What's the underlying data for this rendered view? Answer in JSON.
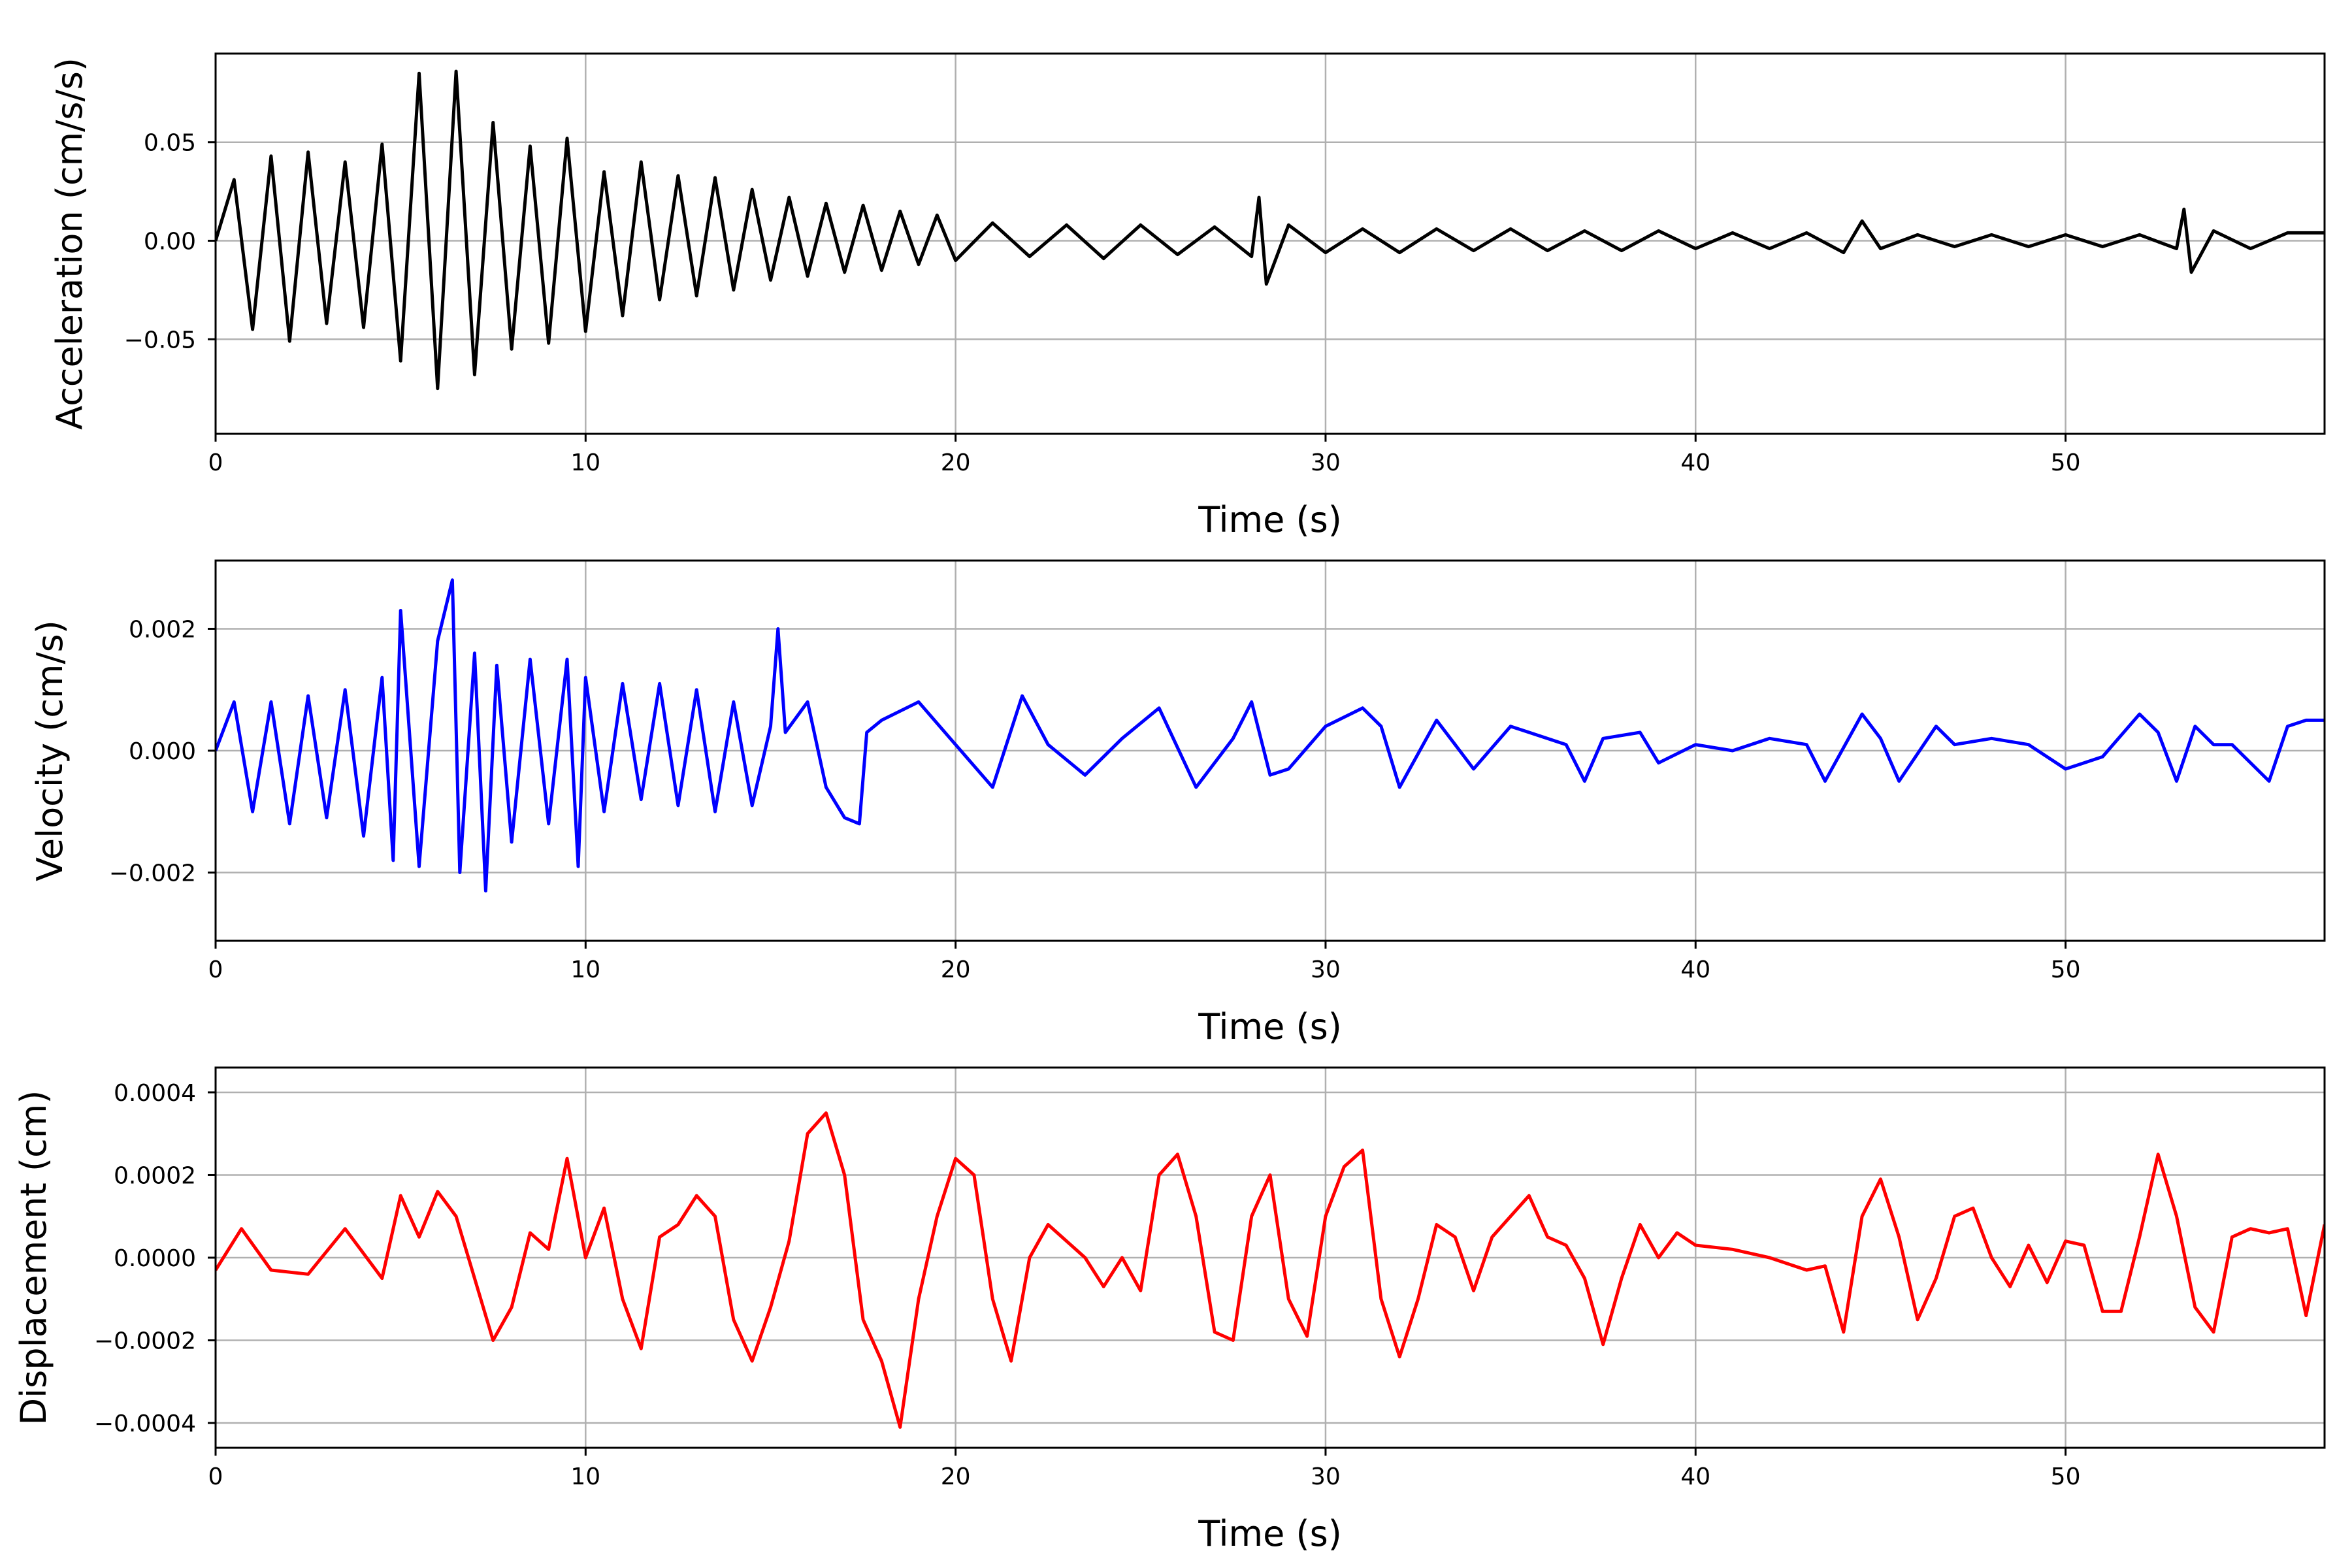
{
  "chart_data": [
    {
      "type": "line",
      "xlabel": "Time (s)",
      "ylabel": "Acceleration (cm/s/s)",
      "xlim": [
        0,
        57
      ],
      "ylim": [
        -0.098,
        0.095
      ],
      "xticks": [
        0,
        10,
        20,
        30,
        40,
        50
      ],
      "xtick_labels": [
        "0",
        "10",
        "20",
        "30",
        "40",
        "50"
      ],
      "yticks": [
        -0.05,
        0.0,
        0.05
      ],
      "ytick_labels": [
        "−0.05",
        "0.00",
        "0.05"
      ],
      "grid": true,
      "legend": "none",
      "series": [
        {
          "color": "#000000",
          "x": [
            0,
            0.5,
            1.0,
            1.5,
            2.0,
            2.5,
            3.0,
            3.5,
            4.0,
            4.5,
            5.0,
            5.5,
            6.0,
            6.5,
            7.0,
            7.5,
            8.0,
            8.5,
            9.0,
            9.5,
            10.0,
            10.5,
            11.0,
            11.5,
            12.0,
            12.5,
            13.0,
            13.5,
            14.0,
            14.5,
            15.0,
            15.5,
            16.0,
            16.5,
            17.0,
            17.5,
            18.0,
            18.5,
            19.0,
            19.5,
            20.0,
            21.0,
            22.0,
            23.0,
            24.0,
            25.0,
            26.0,
            27.0,
            28.0,
            28.2,
            28.4,
            29.0,
            30.0,
            31.0,
            32.0,
            33.0,
            34.0,
            35.0,
            36.0,
            37.0,
            38.0,
            39.0,
            40.0,
            41.0,
            42.0,
            43.0,
            44.0,
            44.5,
            45.0,
            46.0,
            47.0,
            48.0,
            49.0,
            50.0,
            51.0,
            52.0,
            53.0,
            53.2,
            53.4,
            54.0,
            55.0,
            56.0,
            57.0
          ],
          "y": [
            0.0,
            0.031,
            -0.045,
            0.043,
            -0.051,
            0.045,
            -0.042,
            0.04,
            -0.044,
            0.049,
            -0.061,
            0.085,
            -0.075,
            0.086,
            -0.068,
            0.06,
            -0.055,
            0.048,
            -0.052,
            0.052,
            -0.046,
            0.035,
            -0.038,
            0.04,
            -0.03,
            0.033,
            -0.028,
            0.032,
            -0.025,
            0.026,
            -0.02,
            0.022,
            -0.018,
            0.019,
            -0.016,
            0.018,
            -0.015,
            0.015,
            -0.012,
            0.013,
            -0.01,
            0.009,
            -0.008,
            0.008,
            -0.009,
            0.008,
            -0.007,
            0.007,
            -0.008,
            0.022,
            -0.022,
            0.008,
            -0.006,
            0.006,
            -0.006,
            0.006,
            -0.005,
            0.006,
            -0.005,
            0.005,
            -0.005,
            0.005,
            -0.004,
            0.004,
            -0.004,
            0.004,
            -0.006,
            0.01,
            -0.004,
            0.003,
            -0.003,
            0.003,
            -0.003,
            0.003,
            -0.003,
            0.003,
            -0.004,
            0.016,
            -0.016,
            0.005,
            -0.004,
            0.004,
            0.004
          ]
        }
      ]
    },
    {
      "type": "line",
      "xlabel": "Time (s)",
      "ylabel": "Velocity (cm/s)",
      "xlim": [
        0,
        57
      ],
      "ylim": [
        -0.00312,
        0.00312
      ],
      "xticks": [
        0,
        10,
        20,
        30,
        40,
        50
      ],
      "xtick_labels": [
        "0",
        "10",
        "20",
        "30",
        "40",
        "50"
      ],
      "yticks": [
        -0.002,
        0.0,
        0.002
      ],
      "ytick_labels": [
        "−0.002",
        "0.000",
        "0.002"
      ],
      "grid": true,
      "legend": "none",
      "series": [
        {
          "color": "#0000ff",
          "x": [
            0,
            0.5,
            1.0,
            1.5,
            2.0,
            2.5,
            3.0,
            3.5,
            4.0,
            4.5,
            4.8,
            5.0,
            5.5,
            6.0,
            6.4,
            6.6,
            7.0,
            7.3,
            7.6,
            8.0,
            8.5,
            9.0,
            9.5,
            9.8,
            10.0,
            10.5,
            11.0,
            11.5,
            12.0,
            12.5,
            13.0,
            13.5,
            14.0,
            14.5,
            15.0,
            15.2,
            15.4,
            16.0,
            16.5,
            17.0,
            17.4,
            17.6,
            18.0,
            19.0,
            20.0,
            21.0,
            21.8,
            22.5,
            23.5,
            24.5,
            25.5,
            26.5,
            27.5,
            28.0,
            28.5,
            29.0,
            30.0,
            31.0,
            31.5,
            32.0,
            33.0,
            33.5,
            34.0,
            35.0,
            35.5,
            36.5,
            37.0,
            37.5,
            38.5,
            39.0,
            40.0,
            41.0,
            42.0,
            43.0,
            43.5,
            44.5,
            45.0,
            45.5,
            46.5,
            47.0,
            48.0,
            49.0,
            50.0,
            51.0,
            52.0,
            52.5,
            53.0,
            53.5,
            54.0,
            54.5,
            55.5,
            56.0,
            56.5,
            57.0
          ],
          "y": [
            0.0,
            0.0008,
            -0.001,
            0.0008,
            -0.0012,
            0.0009,
            -0.0011,
            0.001,
            -0.0014,
            0.0012,
            -0.0018,
            0.0023,
            -0.0019,
            0.0018,
            0.0028,
            -0.002,
            0.0016,
            -0.0023,
            0.0014,
            -0.0015,
            0.0015,
            -0.0012,
            0.0015,
            -0.0019,
            0.0012,
            -0.001,
            0.0011,
            -0.0008,
            0.0011,
            -0.0009,
            0.001,
            -0.001,
            0.0008,
            -0.0009,
            0.0004,
            0.002,
            0.0003,
            0.0008,
            -0.0006,
            -0.0011,
            -0.0012,
            0.0003,
            0.0005,
            0.0008,
            0.0001,
            -0.0006,
            0.0009,
            0.0001,
            -0.0004,
            0.0002,
            0.0007,
            -0.0006,
            0.0002,
            0.0008,
            -0.0004,
            -0.0003,
            0.0004,
            0.0007,
            0.0004,
            -0.0006,
            0.0005,
            0.0001,
            -0.0003,
            0.0004,
            0.0003,
            0.0001,
            -0.0005,
            0.0002,
            0.0003,
            -0.0002,
            0.0001,
            0.0,
            0.0002,
            0.0001,
            -0.0005,
            0.0006,
            0.0002,
            -0.0005,
            0.0004,
            0.0001,
            0.0002,
            0.0001,
            -0.0003,
            -0.0001,
            0.0006,
            0.0003,
            -0.0005,
            0.0004,
            0.0001,
            0.0001,
            -0.0005,
            0.0004,
            0.0005,
            0.0005
          ]
        }
      ]
    },
    {
      "type": "line",
      "xlabel": "Time (s)",
      "ylabel": "Displacement (cm)",
      "xlim": [
        0,
        57
      ],
      "ylim": [
        -0.00046,
        0.00046
      ],
      "xticks": [
        0,
        10,
        20,
        30,
        40,
        50
      ],
      "xtick_labels": [
        "0",
        "10",
        "20",
        "30",
        "40",
        "50"
      ],
      "yticks": [
        -0.0004,
        -0.0002,
        0.0,
        0.0002,
        0.0004
      ],
      "ytick_labels": [
        "−0.0004",
        "−0.0002",
        "0.0000",
        "0.0002",
        "0.0004"
      ],
      "grid": true,
      "legend": "none",
      "series": [
        {
          "color": "#ff0000",
          "x": [
            0,
            0.7,
            1.5,
            2.5,
            3.5,
            4.5,
            5.0,
            5.5,
            6.0,
            6.5,
            7.0,
            7.5,
            8.0,
            8.5,
            9.0,
            9.5,
            10.0,
            10.5,
            11.0,
            11.5,
            12.0,
            12.5,
            13.0,
            13.5,
            14.0,
            14.5,
            15.0,
            15.5,
            16.0,
            16.5,
            17.0,
            17.5,
            18.0,
            18.5,
            19.0,
            19.5,
            20.0,
            20.5,
            21.0,
            21.5,
            22.0,
            22.5,
            23.5,
            24.0,
            24.5,
            25.0,
            25.5,
            26.0,
            26.5,
            27.0,
            27.5,
            28.0,
            28.5,
            29.0,
            29.5,
            30.0,
            30.5,
            31.0,
            31.5,
            32.0,
            32.5,
            33.0,
            33.5,
            34.0,
            34.5,
            35.0,
            35.5,
            36.0,
            36.5,
            37.0,
            37.5,
            38.0,
            38.5,
            39.0,
            39.5,
            40.0,
            41.0,
            42.0,
            43.0,
            43.5,
            44.0,
            44.5,
            45.0,
            45.5,
            46.0,
            46.5,
            47.0,
            47.5,
            48.0,
            48.5,
            49.0,
            49.5,
            50.0,
            50.5,
            51.0,
            51.5,
            52.0,
            52.5,
            53.0,
            53.5,
            54.0,
            54.5,
            55.0,
            55.5,
            56.0,
            56.5,
            57.0
          ],
          "y": [
            -3e-05,
            7e-05,
            -3e-05,
            -4e-05,
            7e-05,
            -5e-05,
            0.00015,
            5e-05,
            0.00016,
            0.0001,
            -5e-05,
            -0.0002,
            -0.00012,
            6e-05,
            2e-05,
            0.00024,
            0.0,
            0.00012,
            -0.0001,
            -0.00022,
            5e-05,
            8e-05,
            0.00015,
            0.0001,
            -0.00015,
            -0.00025,
            -0.00012,
            4e-05,
            0.0003,
            0.00035,
            0.0002,
            -0.00015,
            -0.00025,
            -0.00041,
            -0.0001,
            0.0001,
            0.00024,
            0.0002,
            -0.0001,
            -0.00025,
            0.0,
            8e-05,
            0.0,
            -7e-05,
            0.0,
            -8e-05,
            0.0002,
            0.00025,
            0.0001,
            -0.00018,
            -0.0002,
            0.0001,
            0.0002,
            -0.0001,
            -0.00019,
            0.0001,
            0.00022,
            0.00026,
            -0.0001,
            -0.00024,
            -0.0001,
            8e-05,
            5e-05,
            -8e-05,
            5e-05,
            0.0001,
            0.00015,
            5e-05,
            3e-05,
            -5e-05,
            -0.00021,
            -5e-05,
            8e-05,
            0.0,
            6e-05,
            3e-05,
            2e-05,
            0.0,
            -3e-05,
            -2e-05,
            -0.00018,
            0.0001,
            0.00019,
            5e-05,
            -0.00015,
            -5e-05,
            0.0001,
            0.00012,
            0.0,
            -7e-05,
            3e-05,
            -6e-05,
            4e-05,
            3e-05,
            -0.00013,
            -0.00013,
            5e-05,
            0.00025,
            0.0001,
            -0.00012,
            -0.00018,
            5e-05,
            7e-05,
            6e-05,
            7e-05,
            -0.00014,
            8e-05
          ]
        }
      ]
    }
  ]
}
